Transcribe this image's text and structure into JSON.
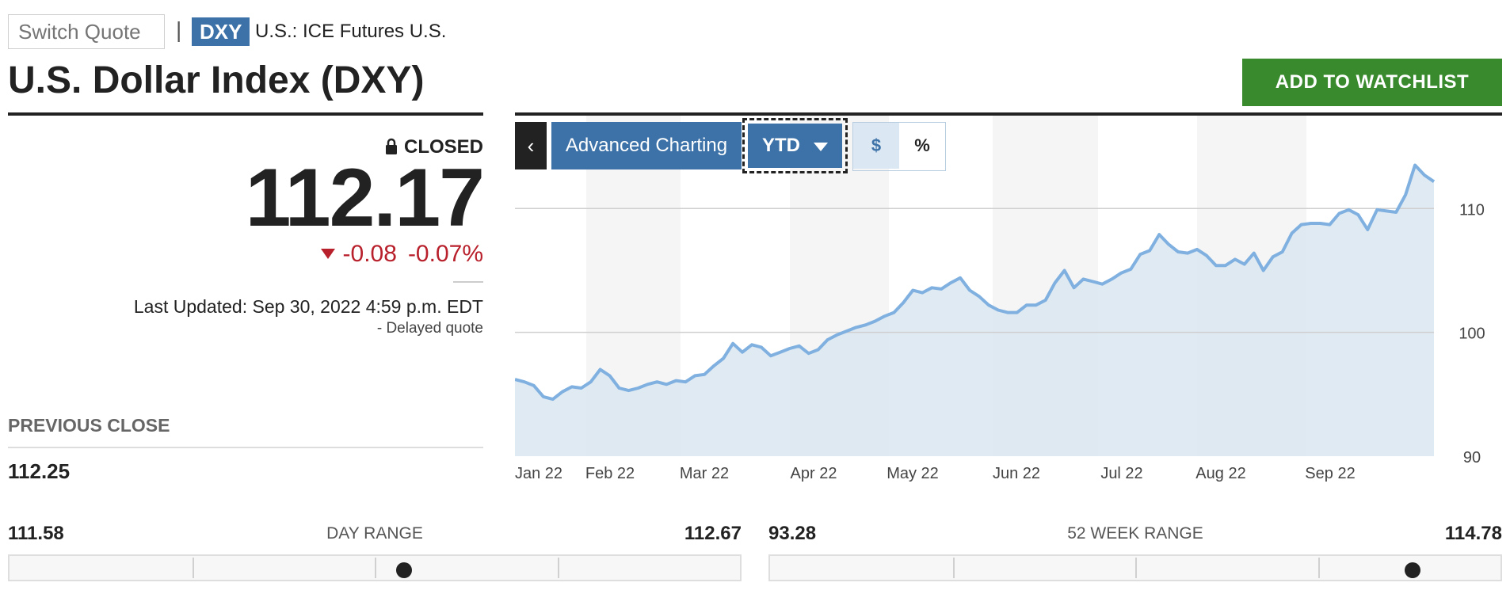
{
  "header": {
    "switch_quote_placeholder": "Switch Quote",
    "separator": "|",
    "ticker": "DXY",
    "exchange": "U.S.: ICE Futures U.S.",
    "title": "U.S. Dollar Index (DXY)",
    "watchlist_label": "ADD TO WATCHLIST"
  },
  "quote": {
    "status": "CLOSED",
    "price": "112.17",
    "change": "-0.08",
    "change_pct": "-0.07%",
    "last_updated": "Last Updated: Sep 30, 2022 4:59 p.m. EDT",
    "delayed": "-  Delayed quote"
  },
  "previous_close": {
    "label": "PREVIOUS CLOSE",
    "value": "112.25"
  },
  "toolbar": {
    "back_label": "‹",
    "advanced_label": "Advanced Charting",
    "period_label": "YTD",
    "toggle_dollar": "$",
    "toggle_percent": "%"
  },
  "day_range": {
    "label": "DAY RANGE",
    "low": "111.58",
    "high": "112.67",
    "position": 0.54
  },
  "week52_range": {
    "label": "52 WEEK RANGE",
    "low": "93.28",
    "high": "114.78",
    "position": 0.88
  },
  "colors": {
    "accent": "#3c72a8",
    "line": "#7fb0e0",
    "area": "#dbe6f1",
    "negative": "#b8202b",
    "watchlist": "#388a2c"
  },
  "chart_data": {
    "type": "area",
    "x": [
      "Jan 3",
      "Jan 5",
      "Jan 7",
      "Jan 11",
      "Jan 13",
      "Jan 15",
      "Jan 19",
      "Jan 21",
      "Jan 25",
      "Jan 27",
      "Jan 31",
      "Feb 2",
      "Feb 4",
      "Feb 8",
      "Feb 10",
      "Feb 14",
      "Feb 16",
      "Feb 18",
      "Feb 22",
      "Feb 24",
      "Feb 28",
      "Mar 2",
      "Mar 4",
      "Mar 8",
      "Mar 10",
      "Mar 14",
      "Mar 16",
      "Mar 18",
      "Mar 22",
      "Mar 24",
      "Mar 28",
      "Mar 30",
      "Apr 1",
      "Apr 5",
      "Apr 7",
      "Apr 11",
      "Apr 13",
      "Apr 15",
      "Apr 19",
      "Apr 21",
      "Apr 25",
      "Apr 27",
      "Apr 29",
      "May 3",
      "May 5",
      "May 9",
      "May 11",
      "May 13",
      "May 17",
      "May 19",
      "May 23",
      "May 25",
      "May 27",
      "May 31",
      "Jun 2",
      "Jun 6",
      "Jun 8",
      "Jun 10",
      "Jun 14",
      "Jun 16",
      "Jun 20",
      "Jun 22",
      "Jun 24",
      "Jun 28",
      "Jun 30",
      "Jul 4",
      "Jul 6",
      "Jul 8",
      "Jul 12",
      "Jul 14",
      "Jul 18",
      "Jul 20",
      "Jul 22",
      "Jul 26",
      "Jul 28",
      "Aug 1",
      "Aug 3",
      "Aug 5",
      "Aug 9",
      "Aug 11",
      "Aug 15",
      "Aug 17",
      "Aug 19",
      "Aug 23",
      "Aug 25",
      "Aug 29",
      "Aug 31",
      "Sep 2",
      "Sep 6",
      "Sep 8",
      "Sep 12",
      "Sep 14",
      "Sep 16",
      "Sep 20",
      "Sep 22",
      "Sep 26",
      "Sep 28",
      "Sep 30"
    ],
    "values": [
      96.2,
      96.0,
      95.7,
      94.8,
      94.6,
      95.2,
      95.6,
      95.5,
      96.0,
      97.0,
      96.5,
      95.5,
      95.3,
      95.5,
      95.8,
      96.0,
      95.8,
      96.1,
      96.0,
      96.5,
      96.6,
      97.3,
      97.9,
      99.1,
      98.4,
      99.0,
      98.8,
      98.1,
      98.4,
      98.7,
      98.9,
      98.3,
      98.6,
      99.4,
      99.8,
      100.1,
      100.4,
      100.6,
      100.9,
      101.3,
      101.6,
      102.4,
      103.4,
      103.2,
      103.6,
      103.5,
      104.0,
      104.4,
      103.4,
      102.9,
      102.2,
      101.8,
      101.6,
      101.6,
      102.2,
      102.2,
      102.6,
      104.0,
      105.0,
      103.6,
      104.3,
      104.1,
      103.9,
      104.3,
      104.8,
      105.1,
      106.3,
      106.6,
      107.9,
      107.1,
      106.5,
      106.4,
      106.7,
      106.2,
      105.4,
      105.4,
      105.9,
      105.5,
      106.4,
      105.0,
      106.1,
      106.5,
      108.0,
      108.7,
      108.8,
      108.8,
      108.7,
      109.6,
      109.9,
      109.5,
      108.3,
      109.9,
      109.8,
      109.7,
      111.1,
      113.5,
      112.7,
      112.17
    ],
    "x_tick_labels": [
      "Jan 22",
      "Feb 22",
      "Mar 22",
      "Apr 22",
      "May 22",
      "Jun 22",
      "Jul 22",
      "Aug 22",
      "Sep 22"
    ],
    "y_ticks": [
      90,
      100,
      110
    ],
    "ylim": [
      90,
      117.5
    ]
  }
}
